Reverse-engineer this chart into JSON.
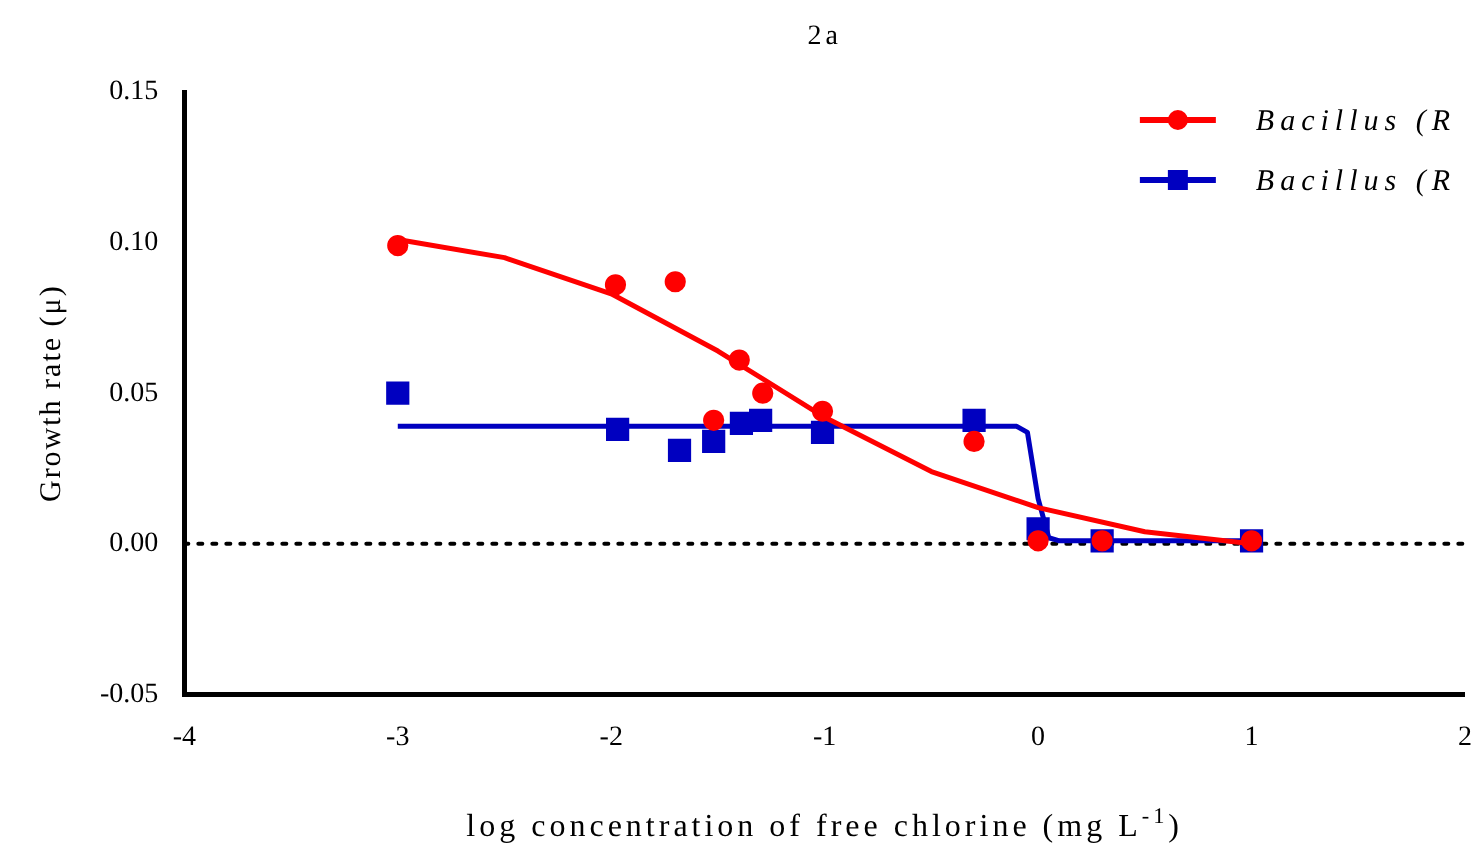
{
  "chart_data": {
    "type": "scatter",
    "title": "2a",
    "xlabel": "log concentration of free chlorine (mg L$^{-1}$)",
    "ylabel": "Growth rate (μ)",
    "xlim": [
      -4,
      2
    ],
    "xticks": [
      -4,
      -3,
      -2,
      -1,
      0,
      1,
      2
    ],
    "ylim": [
      -0.05,
      0.15
    ],
    "yticks": [
      {
        "value": -0.05,
        "label": "-0.05"
      },
      {
        "value": 0,
        "label": "0.00"
      },
      {
        "value": 0.05,
        "label": "0.05"
      },
      {
        "value": 0.1,
        "label": "0.10"
      },
      {
        "value": 0.15,
        "label": "0.15"
      }
    ],
    "grid": false,
    "legend": "top right",
    "ref_lines": [
      {
        "axis": "y",
        "value": 0,
        "color": "#000000",
        "line_style": "dotted"
      }
    ],
    "series": [
      {
        "name": "Bacillus (R",
        "marker": "circle",
        "color": "#ff0000",
        "x": [
          -3,
          -1.98,
          -1.7,
          -1.4,
          -1.29,
          -1.52,
          -1.01,
          -0.3,
          0,
          0.3,
          1
        ],
        "values": [
          0.099,
          0.086,
          0.087,
          0.061,
          0.05,
          0.041,
          0.044,
          0.034,
          0.001,
          0.001,
          0.001
        ]
      },
      {
        "name": "Bacillus (R",
        "marker": "square",
        "color": "#0000c0",
        "x": [
          -3,
          -1.97,
          -1.68,
          -1.52,
          -1.39,
          -1.3,
          -1.01,
          -0.3,
          0,
          0.3,
          1
        ],
        "values": [
          0.05,
          0.038,
          0.031,
          0.034,
          0.04,
          0.041,
          0.037,
          0.041,
          0.005,
          0.001,
          0.001
        ]
      },
      {
        "type": "line",
        "marker": "none",
        "color": "#ff0000",
        "x": [
          -3,
          -2.5,
          -2,
          -1.5,
          -1,
          -0.5,
          0,
          0.5,
          1
        ],
        "values": [
          0.101,
          0.095,
          0.083,
          0.064,
          0.042,
          0.024,
          0.012,
          0.004,
          0
        ]
      },
      {
        "type": "line",
        "marker": "none",
        "color": "#0000c0",
        "x": [
          -3,
          -0.1,
          -0.05,
          0,
          0.05,
          0.1,
          1
        ],
        "values": [
          0.039,
          0.039,
          0.037,
          0.015,
          0.002,
          0.001,
          0.001
        ]
      }
    ]
  }
}
